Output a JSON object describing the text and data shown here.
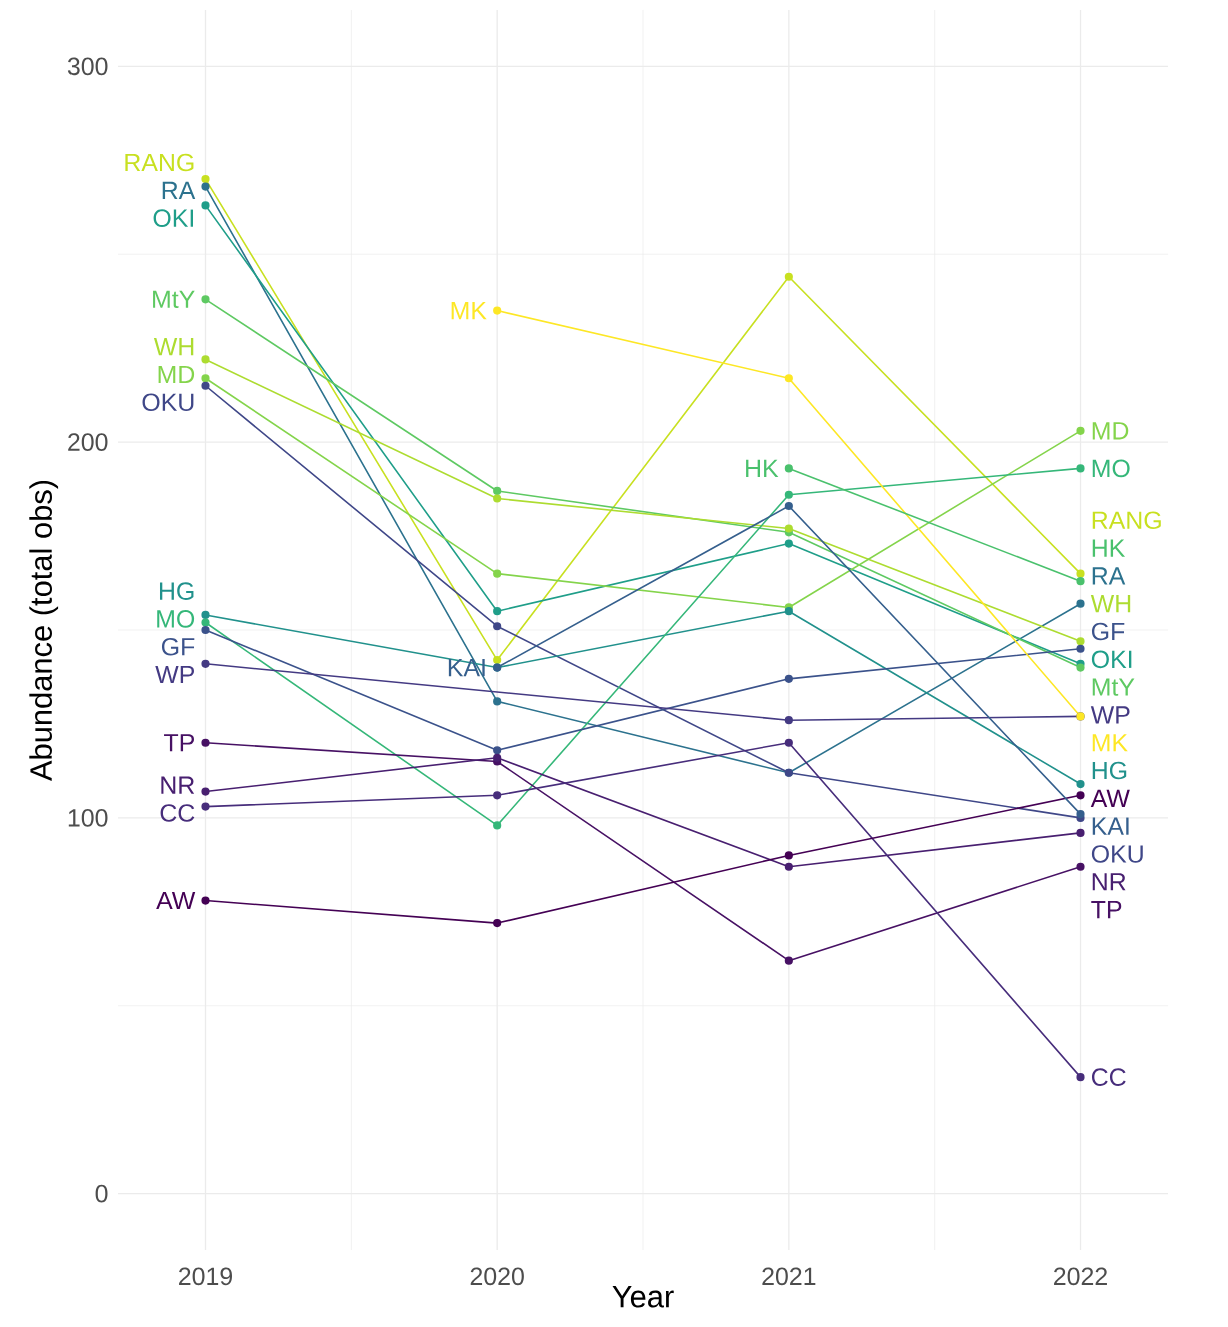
{
  "chart_data": {
    "type": "line",
    "xlabel": "Year",
    "ylabel": "Abundance (total obs)",
    "x": [
      2019,
      2020,
      2021,
      2022
    ],
    "xlim": [
      2018.7,
      2022.3
    ],
    "ylim": [
      -15,
      315
    ],
    "xticks": [
      2019,
      2020,
      2021,
      2022
    ],
    "yticks": [
      0,
      100,
      200,
      300
    ],
    "grid": true,
    "marker": "circle",
    "series": [
      {
        "name": "RANG",
        "color": "#c8e020",
        "values": [
          270,
          142,
          244,
          165
        ]
      },
      {
        "name": "RA",
        "color": "#2c728e",
        "values": [
          268,
          131,
          112,
          157
        ]
      },
      {
        "name": "OKI",
        "color": "#1f9e89",
        "values": [
          263,
          155,
          173,
          141
        ]
      },
      {
        "name": "MtY",
        "color": "#5ec962",
        "values": [
          238,
          187,
          176,
          140
        ]
      },
      {
        "name": "WH",
        "color": "#addc30",
        "values": [
          222,
          185,
          177,
          147
        ]
      },
      {
        "name": "MD",
        "color": "#84d44b",
        "values": [
          217,
          165,
          156,
          203
        ]
      },
      {
        "name": "OKU",
        "color": "#3f4788",
        "values": [
          215,
          151,
          112,
          100
        ]
      },
      {
        "name": "HG",
        "color": "#21918c",
        "values": [
          154,
          140,
          155,
          109
        ]
      },
      {
        "name": "MO",
        "color": "#35b779",
        "values": [
          152,
          98,
          186,
          193
        ]
      },
      {
        "name": "GF",
        "color": "#3b528b",
        "values": [
          150,
          118,
          137,
          145
        ]
      },
      {
        "name": "WP",
        "color": "#443a83",
        "x": [
          2019,
          2021,
          2022
        ],
        "values": [
          141,
          126,
          127
        ]
      },
      {
        "name": "TP",
        "color": "#471164",
        "values": [
          120,
          115,
          62,
          87
        ]
      },
      {
        "name": "NR",
        "color": "#481f70",
        "values": [
          107,
          116,
          87,
          96
        ]
      },
      {
        "name": "CC",
        "color": "#472d7b",
        "values": [
          103,
          106,
          120,
          31
        ]
      },
      {
        "name": "AW",
        "color": "#440154",
        "values": [
          78,
          72,
          90,
          106
        ]
      },
      {
        "name": "KAI",
        "color": "#355f8d",
        "x": [
          2020,
          2021,
          2022
        ],
        "values": [
          140,
          183,
          101
        ]
      },
      {
        "name": "MK",
        "color": "#fde725",
        "x": [
          2020,
          2021,
          2022
        ],
        "values": [
          235,
          217,
          127
        ]
      },
      {
        "name": "HK",
        "color": "#4ac16d",
        "x": [
          2021,
          2022
        ],
        "values": [
          193,
          163
        ]
      }
    ]
  }
}
